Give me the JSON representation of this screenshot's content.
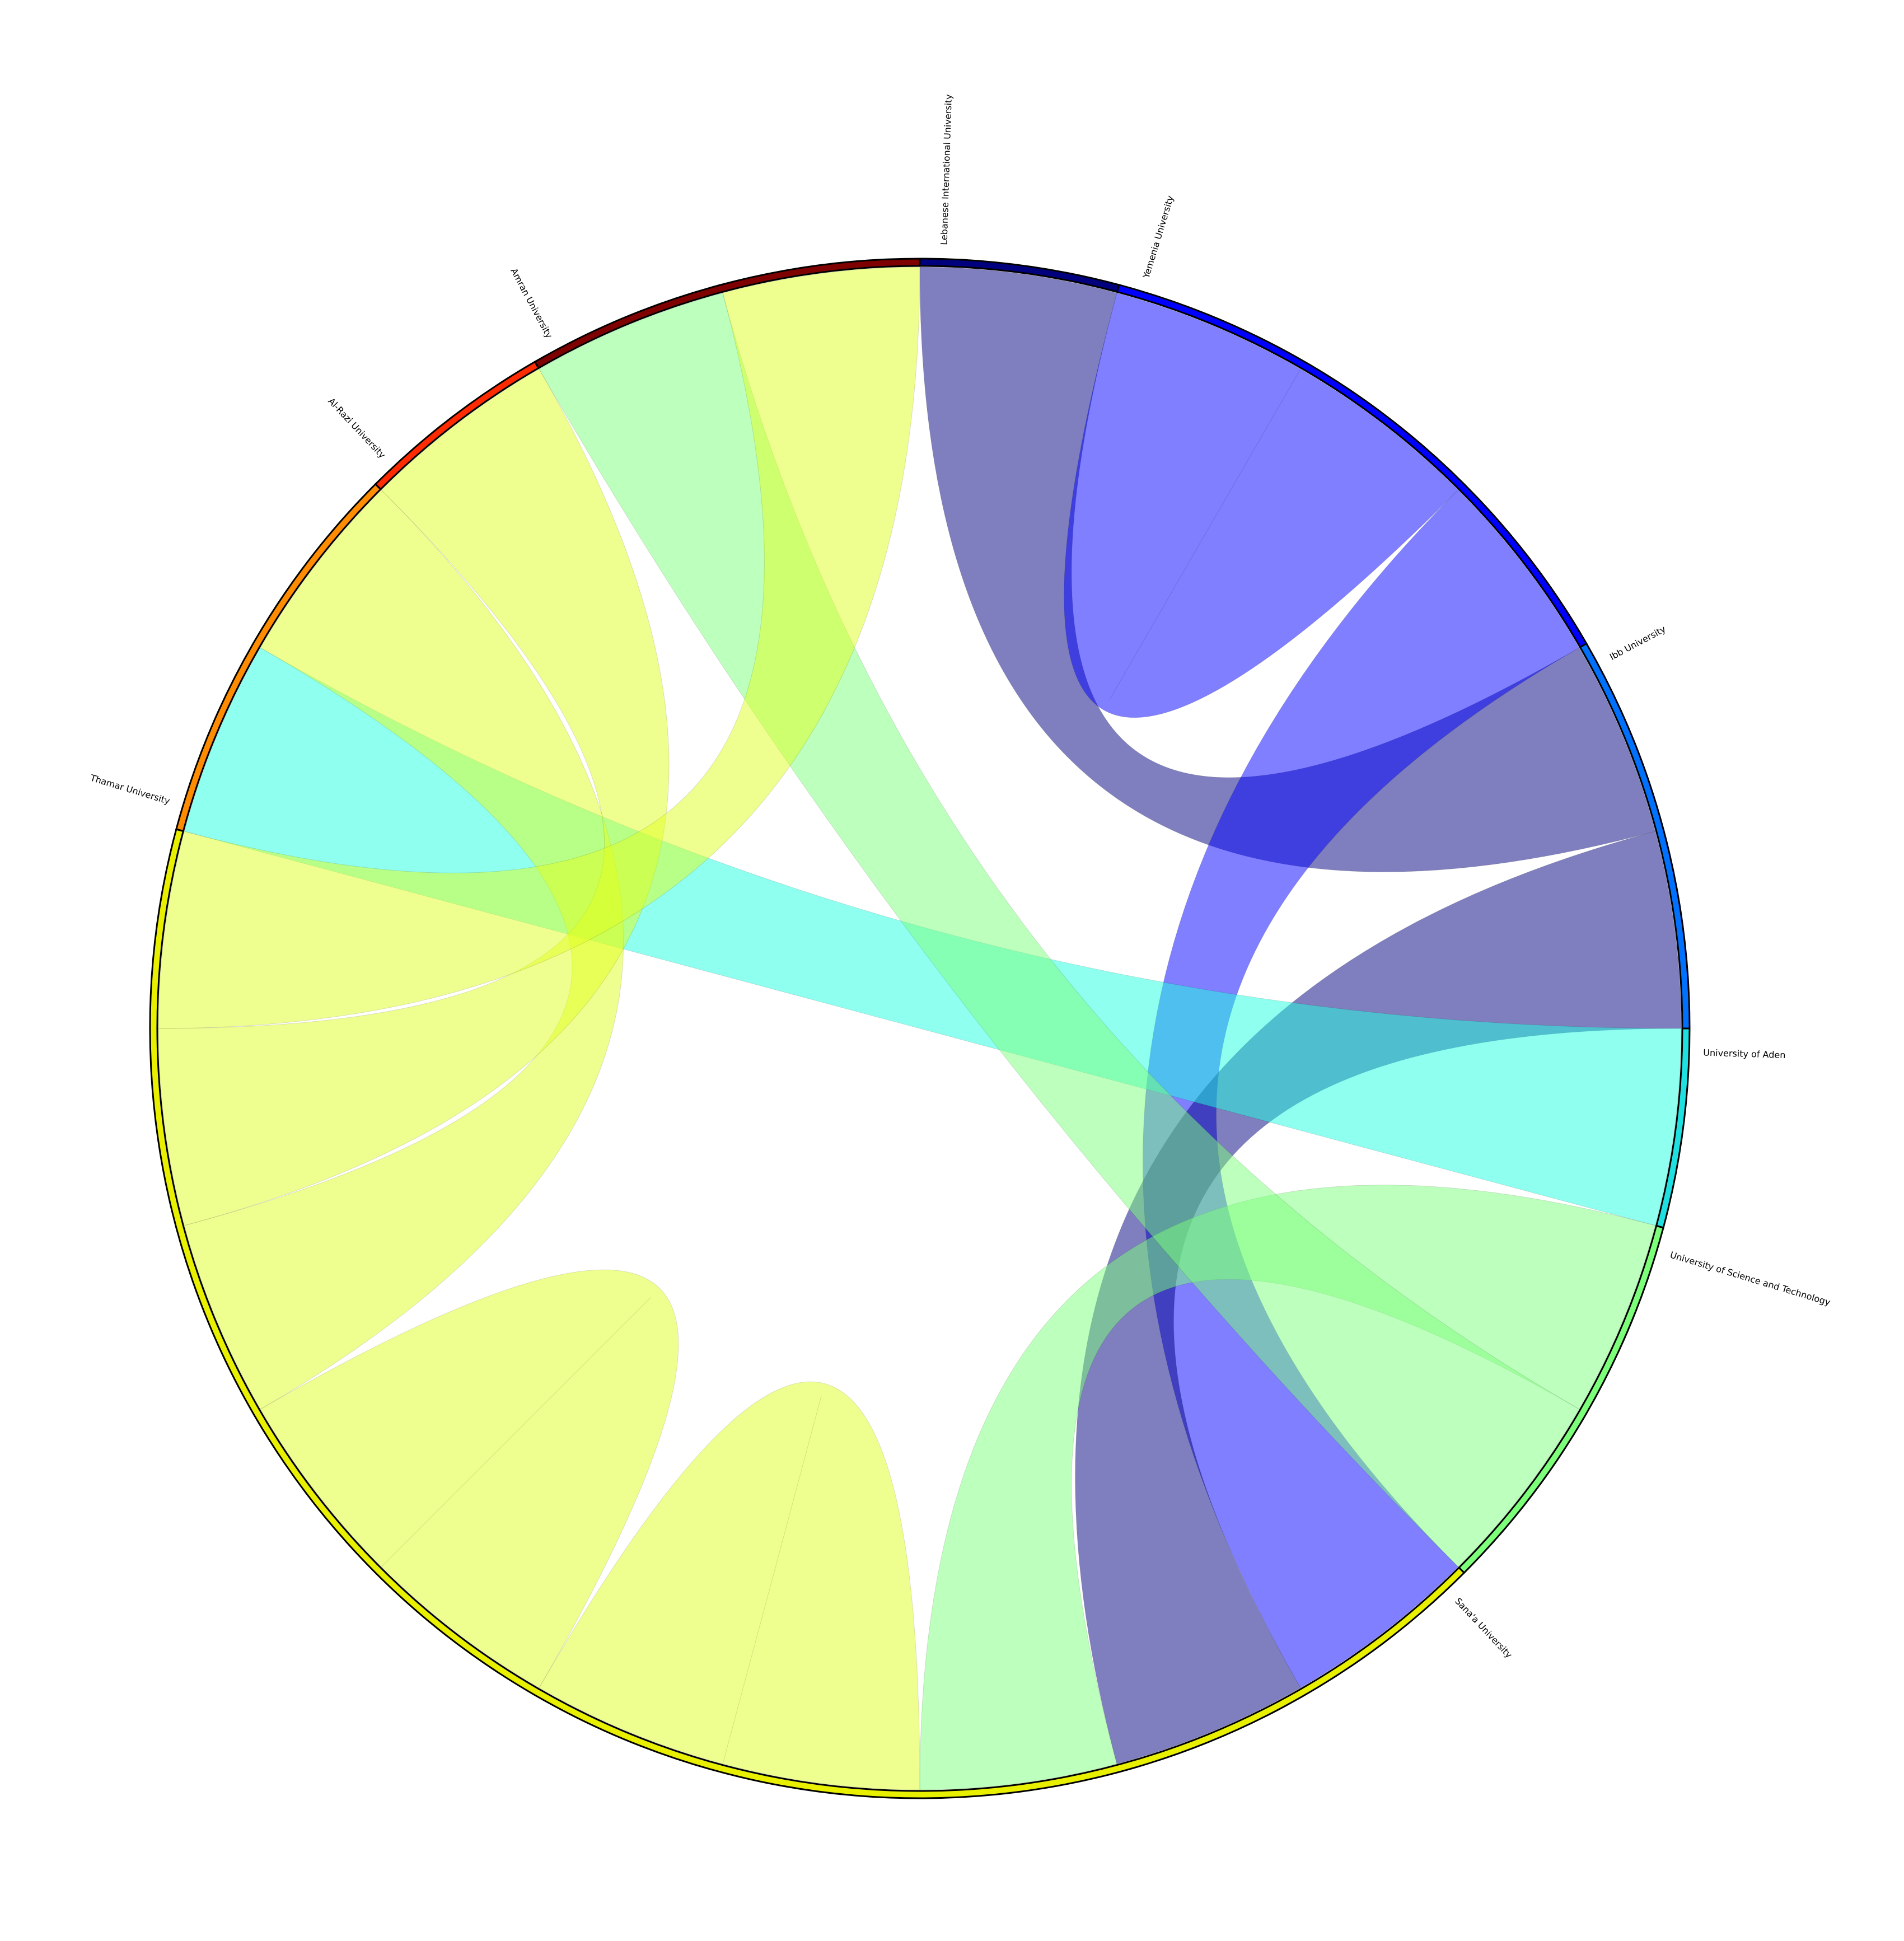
{
  "chart_data": {
    "type": "chord",
    "title": "",
    "nodes": [
      {
        "name": "Lebanese International University",
        "color": "#00007f"
      },
      {
        "name": "Yemenia University",
        "color": "#0000ff"
      },
      {
        "name": "Ibb University",
        "color": "#0070ff"
      },
      {
        "name": "University of Aden",
        "color": "#1fe0e0"
      },
      {
        "name": "University of Science and Technology",
        "color": "#7cff79"
      },
      {
        "name": "Sana'a University",
        "color": "#e8f000"
      },
      {
        "name": "Thamar University",
        "color": "#ff8c00"
      },
      {
        "name": "Al-Razi University",
        "color": "#ff2a00"
      },
      {
        "name": "Amran University",
        "color": "#7f0000"
      }
    ],
    "links": [
      {
        "source": "Lebanese International University",
        "target": "Ibb University",
        "value": 1,
        "color": "#00007f"
      },
      {
        "source": "Yemenia University",
        "target": "Yemenia University",
        "value": 1,
        "color": "#0000ff"
      },
      {
        "source": "Yemenia University",
        "target": "Sana'a University",
        "value": 1,
        "color": "#0000ff"
      },
      {
        "source": "Ibb University",
        "target": "Sana'a University",
        "value": 1,
        "color": "#00007f"
      },
      {
        "source": "University of Aden",
        "target": "Thamar University",
        "value": 1,
        "color": "#1fffe0"
      },
      {
        "source": "University of Science and Technology",
        "target": "Sana'a University",
        "value": 1,
        "color": "#7cff79"
      },
      {
        "source": "University of Science and Technology",
        "target": "Amran University",
        "value": 1,
        "color": "#7cff79"
      },
      {
        "source": "Sana'a University",
        "target": "Sana'a University",
        "value": 1,
        "color": "#e0ff1f"
      },
      {
        "source": "Sana'a University",
        "target": "Sana'a University",
        "value": 1,
        "color": "#e0ff1f"
      },
      {
        "source": "Sana'a University",
        "target": "Thamar University",
        "value": 1,
        "color": "#e0ff1f"
      },
      {
        "source": "Sana'a University",
        "target": "Al-Razi University",
        "value": 1,
        "color": "#e0ff1f"
      },
      {
        "source": "Sana'a University",
        "target": "Amran University",
        "value": 1,
        "color": "#e0ff1f"
      }
    ]
  }
}
